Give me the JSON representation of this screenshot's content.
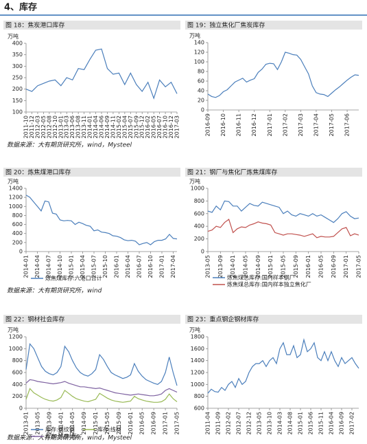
{
  "header": {
    "title": "4、库存"
  },
  "sources": [
    "数据来源：大有期货研究所，wind，Mysteel",
    "数据来源：大有期货研究所，wind",
    "数据来源：大有期货研究所，wind，Mysteel"
  ],
  "chart_data": [
    {
      "type": "line",
      "title": "图 18：焦炭港口库存",
      "unit": "万吨",
      "color": "#4a7ebb",
      "categories": [
        "2011-10",
        "2011-12",
        "2012-03",
        "2012-05",
        "2012-08",
        "2012-10",
        "2013-01",
        "2013-03",
        "2013-06",
        "2013-08",
        "2013-11",
        "2014-01",
        "2014-04",
        "2014-06",
        "2014-09",
        "2014-11",
        "2015-02",
        "2015-04",
        "2015-07",
        "2015-09",
        "2015-12",
        "2016-02",
        "2016-05",
        "2016-07",
        "2016-10",
        "2016-12",
        "2017-03"
      ],
      "values": [
        200,
        190,
        215,
        225,
        235,
        240,
        215,
        250,
        240,
        290,
        285,
        330,
        370,
        375,
        290,
        265,
        270,
        220,
        270,
        220,
        190,
        230,
        160,
        240,
        210,
        230,
        180
      ],
      "ylim": [
        100,
        400
      ],
      "yticks": [
        100,
        150,
        200,
        250,
        300,
        350,
        400
      ]
    },
    {
      "type": "line",
      "title": "图 19：独立焦化厂焦炭库存",
      "unit": "万吨",
      "color": "#4a7ebb",
      "categories": [
        "2016-09",
        null,
        null,
        null,
        "2016-10",
        null,
        null,
        null,
        "2016-11",
        null,
        null,
        null,
        "2016-12",
        null,
        null,
        null,
        "2017-01",
        null,
        null,
        null,
        "2017-02",
        null,
        null,
        null,
        "2017-03",
        null,
        null,
        null,
        "2017-04",
        null,
        null,
        null,
        "2017-05",
        null,
        null,
        null,
        "2017-06",
        null,
        null,
        null
      ],
      "values": [
        33,
        28,
        26,
        30,
        38,
        42,
        50,
        58,
        62,
        66,
        58,
        62,
        65,
        78,
        85,
        95,
        97,
        96,
        84,
        100,
        120,
        118,
        115,
        114,
        105,
        90,
        75,
        50,
        36,
        33,
        32,
        28,
        35,
        42,
        48,
        55,
        62,
        68,
        73,
        72
      ],
      "ylim": [
        0,
        140
      ],
      "yticks": [
        0,
        20,
        40,
        60,
        80,
        100,
        120,
        140
      ]
    },
    {
      "type": "line",
      "title": "图 20：炼焦煤港口库存",
      "unit": "万吨",
      "legend": "bottom",
      "categories": [
        "2014-01",
        null,
        null,
        "2014-04",
        null,
        null,
        "2014-07",
        null,
        null,
        "2014-10",
        null,
        null,
        "2015-01",
        null,
        null,
        "2015-04",
        null,
        null,
        "2015-07",
        null,
        null,
        "2015-10",
        null,
        null,
        "2016-01",
        null,
        null,
        "2016-04",
        null,
        null,
        "2016-07",
        null,
        null,
        "2016-10",
        null,
        null,
        "2017-01",
        null,
        null,
        "2017-04",
        null
      ],
      "series": [
        {
          "name": "炼焦煤库存:六港口合计",
          "color": "#4a7ebb",
          "values": [
            1250,
            1200,
            1100,
            1000,
            900,
            1120,
            1100,
            850,
            830,
            700,
            680,
            690,
            680,
            600,
            650,
            620,
            580,
            560,
            460,
            480,
            430,
            420,
            400,
            350,
            340,
            310,
            260,
            240,
            250,
            230,
            150,
            180,
            200,
            150,
            220,
            250,
            250,
            280,
            380,
            290,
            280
          ]
        }
      ],
      "ylim": [
        0,
        1400
      ],
      "yticks": [
        0,
        200,
        400,
        600,
        800,
        1000,
        1200,
        1400
      ]
    },
    {
      "type": "line",
      "title": "图 21：钢厂与焦化厂炼焦煤库存",
      "unit": "万吨",
      "legend": "bottom",
      "categories": [
        "2013-05",
        null,
        null,
        "2013-09",
        null,
        null,
        "2014-01",
        null,
        null,
        "2014-05",
        null,
        null,
        "2014-09",
        null,
        null,
        "2015-01",
        null,
        null,
        "2015-05",
        null,
        null,
        "2015-09",
        null,
        null,
        "2016-01",
        null,
        null,
        "2016-05",
        null,
        null,
        "2016-09",
        null,
        null,
        "2017-01",
        null,
        null,
        "2017-05"
      ],
      "series": [
        {
          "name": "炼焦煤总库存:国内样本钢厂",
          "color": "#4a7ebb",
          "values": [
            640,
            620,
            720,
            660,
            800,
            790,
            720,
            720,
            640,
            700,
            760,
            730,
            720,
            780,
            760,
            740,
            720,
            700,
            600,
            640,
            580,
            560,
            600,
            580,
            560,
            600,
            560,
            580,
            540,
            500,
            460,
            520,
            600,
            630,
            560,
            520,
            530
          ]
        },
        {
          "name": "炼焦煤总库存:国内样本独立焦化厂",
          "color": "#c0504d",
          "values": [
            320,
            340,
            400,
            380,
            460,
            510,
            300,
            360,
            390,
            380,
            420,
            440,
            470,
            450,
            440,
            420,
            300,
            280,
            260,
            280,
            280,
            270,
            260,
            240,
            260,
            280,
            220,
            240,
            230,
            230,
            240,
            300,
            360,
            380,
            250,
            280,
            260
          ]
        }
      ],
      "ylim": [
        0,
        1000
      ],
      "yticks": [
        0,
        200,
        400,
        600,
        800,
        1000
      ]
    },
    {
      "type": "line",
      "title": "图 22：钢材社会库存",
      "unit": "万吨",
      "legend": "bottom",
      "categories": [
        "2013-01",
        null,
        null,
        "2013-05",
        null,
        null,
        "2013-09",
        null,
        null,
        "2014-01",
        null,
        null,
        "2014-05",
        null,
        null,
        "2014-09",
        null,
        null,
        "2015-01",
        null,
        null,
        "2015-05",
        null,
        null,
        "2015-09",
        null,
        null,
        "2016-01",
        null,
        null,
        "2016-05",
        null,
        null,
        "2016-09",
        null,
        null,
        "2017-01",
        null,
        null,
        "2017-05"
      ],
      "series": [
        {
          "name": "库存:螺纹钢",
          "color": "#4a7ebb",
          "values": [
            650,
            1080,
            1000,
            850,
            700,
            620,
            580,
            560,
            600,
            700,
            1040,
            950,
            800,
            680,
            600,
            560,
            540,
            580,
            650,
            900,
            820,
            700,
            600,
            560,
            530,
            500,
            520,
            560,
            750,
            620,
            540,
            480,
            450,
            420,
            400,
            450,
            600,
            860,
            600,
            380
          ]
        },
        {
          "name": "库存:线材",
          "color": "#98b954",
          "values": [
            150,
            330,
            260,
            220,
            180,
            150,
            130,
            120,
            140,
            180,
            300,
            250,
            200,
            160,
            140,
            120,
            110,
            130,
            150,
            250,
            210,
            170,
            140,
            120,
            110,
            100,
            110,
            120,
            200,
            160,
            140,
            120,
            110,
            100,
            100,
            110,
            150,
            240,
            160,
            110
          ]
        },
        {
          "name": "库存:热卷(板)",
          "color": "#7e62a1",
          "values": [
            420,
            480,
            470,
            450,
            440,
            430,
            420,
            410,
            420,
            430,
            450,
            420,
            400,
            380,
            360,
            360,
            350,
            340,
            330,
            340,
            320,
            300,
            280,
            260,
            250,
            240,
            230,
            220,
            230,
            240,
            230,
            220,
            210,
            210,
            220,
            240,
            300,
            330,
            300,
            270
          ]
        }
      ],
      "ylim": [
        0,
        1200
      ],
      "yticks": [
        0,
        200,
        400,
        600,
        800,
        1000,
        1200
      ]
    },
    {
      "type": "line",
      "title": "图 23：重点钢企钢材库存",
      "unit": "万吨",
      "color": "#4a7ebb",
      "categories": [
        "2011-04",
        null,
        null,
        "2011-09",
        null,
        null,
        "2012-02",
        null,
        null,
        "2012-07",
        null,
        null,
        "2012-12",
        null,
        null,
        "2013-05",
        null,
        null,
        "2013-10",
        null,
        null,
        "2014-03",
        null,
        null,
        "2014-08",
        null,
        null,
        "2015-01",
        null,
        null,
        "2015-06",
        null,
        null,
        "2015-11",
        null,
        null,
        "2016-04",
        null,
        null,
        "2016-09",
        null,
        null,
        "2017-02",
        null,
        null
      ],
      "values": [
        850,
        920,
        880,
        870,
        950,
        900,
        1000,
        1050,
        950,
        1100,
        1000,
        1050,
        1200,
        1300,
        1350,
        1350,
        1400,
        1300,
        1400,
        1450,
        1350,
        1600,
        1700,
        1500,
        1500,
        1650,
        1450,
        1500,
        1750,
        1550,
        1600,
        1700,
        1450,
        1400,
        1550,
        1400,
        1550,
        1400,
        1300,
        1450,
        1350,
        1400,
        1450,
        1350,
        1270
      ],
      "ylim": [
        600,
        1800
      ],
      "yticks": [
        600,
        800,
        1000,
        1200,
        1400,
        1600,
        1800
      ]
    }
  ]
}
